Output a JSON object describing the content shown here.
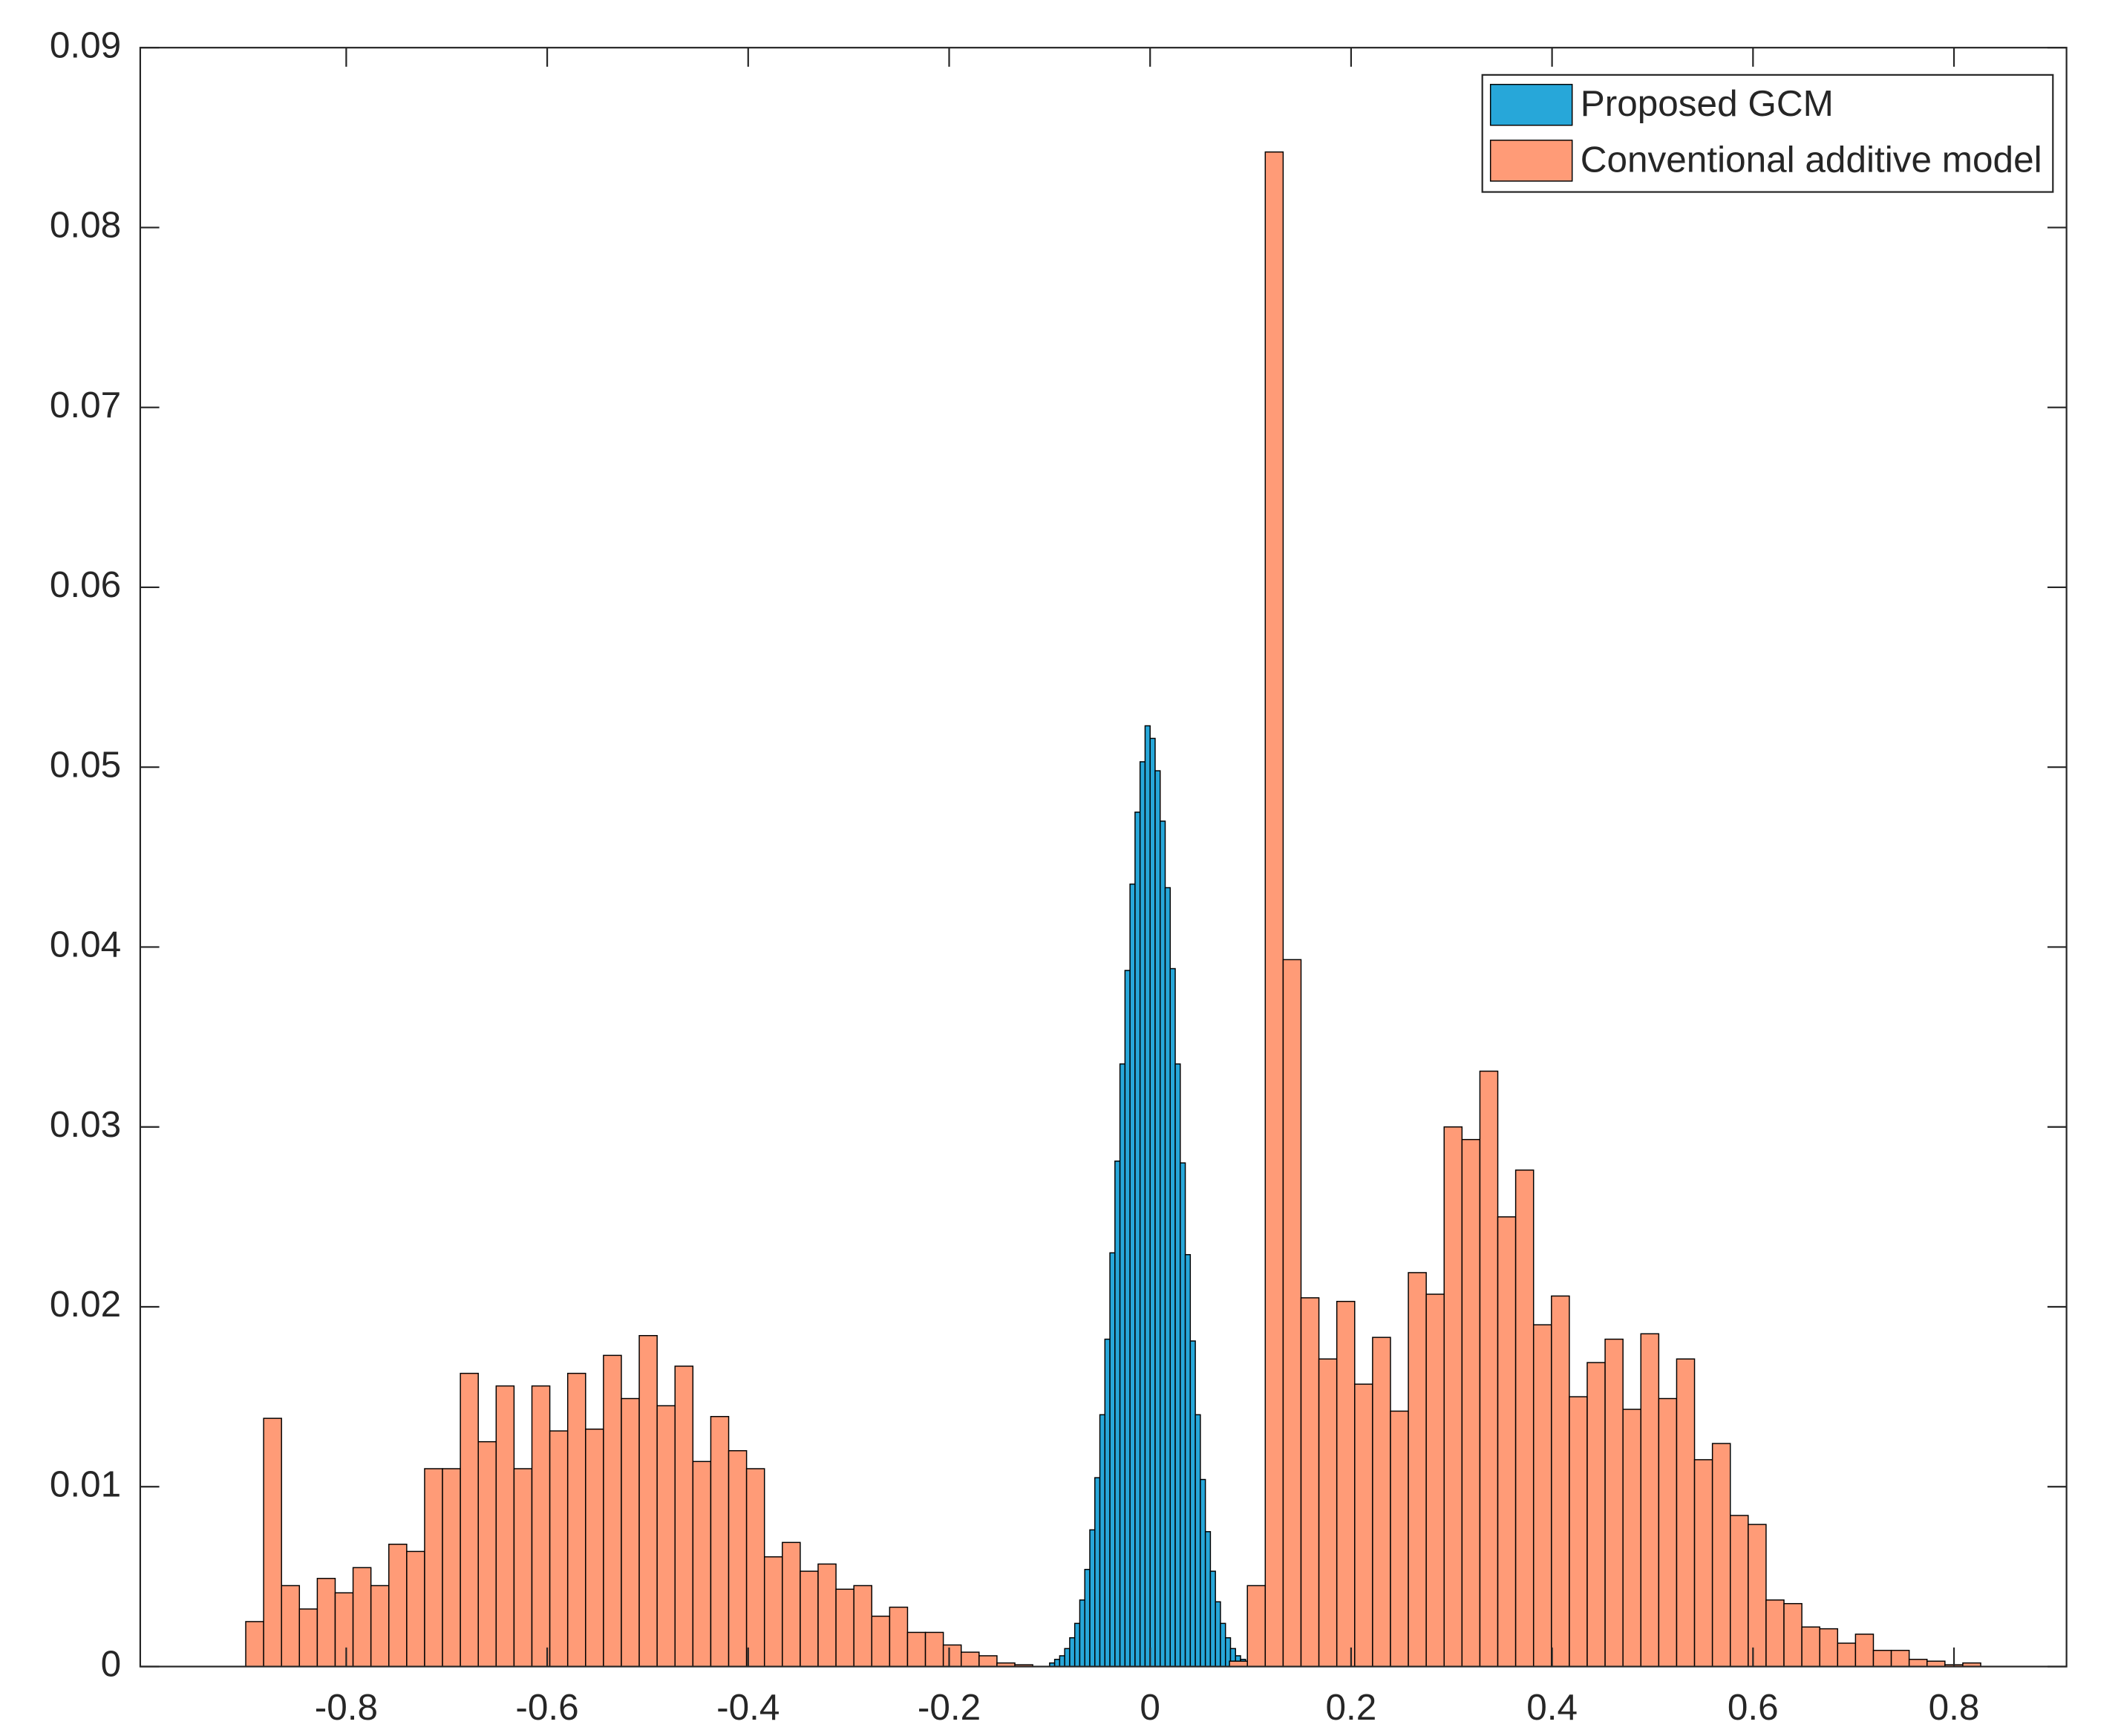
{
  "chart_data": {
    "type": "histogram",
    "xlim": [
      -1.005,
      0.912
    ],
    "ylim": [
      0,
      0.09
    ],
    "xticks": [
      -0.8,
      -0.6,
      -0.4,
      -0.2,
      0,
      0.2,
      0.4,
      0.6,
      0.8
    ],
    "yticks": [
      0,
      0.01,
      0.02,
      0.03,
      0.04,
      0.05,
      0.06,
      0.07,
      0.08,
      0.09
    ],
    "legend": "top-right",
    "series": [
      {
        "name": "Proposed GCM",
        "color": "#27a7d9",
        "bins": [
          -0.1,
          -0.095,
          -0.09,
          -0.085,
          -0.08,
          -0.075,
          -0.07,
          -0.065,
          -0.06,
          -0.055,
          -0.05,
          -0.045,
          -0.04,
          -0.035,
          -0.03,
          -0.025,
          -0.02,
          -0.015,
          -0.01,
          -0.005,
          0,
          0.005,
          0.01,
          0.015,
          0.02,
          0.025,
          0.03,
          0.035,
          0.04,
          0.045,
          0.05,
          0.055,
          0.06,
          0.065,
          0.07,
          0.075,
          0.08,
          0.085,
          0.09,
          0.095,
          0.1
        ],
        "values": [
          0.0002,
          0.0004,
          0.0006,
          0.001,
          0.0016,
          0.0024,
          0.0037,
          0.0054,
          0.0076,
          0.0105,
          0.014,
          0.0182,
          0.023,
          0.0281,
          0.0335,
          0.0387,
          0.0435,
          0.0475,
          0.0503,
          0.0523,
          0.0516,
          0.0498,
          0.047,
          0.0433,
          0.0388,
          0.0335,
          0.028,
          0.0229,
          0.0181,
          0.014,
          0.0104,
          0.0075,
          0.0053,
          0.0036,
          0.0024,
          0.0016,
          0.001,
          0.0006,
          0.0004,
          0.0002
        ]
      },
      {
        "name": "Conventional additive model",
        "color": "#ff9b77",
        "bins": [
          -0.9,
          -0.8822,
          -0.8644,
          -0.8466,
          -0.8288,
          -0.811,
          -0.7932,
          -0.7754,
          -0.7576,
          -0.7398,
          -0.722,
          -0.7042,
          -0.6864,
          -0.6686,
          -0.6508,
          -0.633,
          -0.6152,
          -0.5974,
          -0.5796,
          -0.5618,
          -0.544,
          -0.5262,
          -0.5084,
          -0.4906,
          -0.4728,
          -0.455,
          -0.4372,
          -0.4194,
          -0.4016,
          -0.3838,
          -0.366,
          -0.3482,
          -0.3304,
          -0.3126,
          -0.2948,
          -0.277,
          -0.2592,
          -0.2414,
          -0.2236,
          -0.2058,
          -0.188,
          -0.1702,
          -0.1524,
          -0.1346,
          -0.1168,
          -0.099,
          -0.0812,
          -0.0634,
          -0.0456,
          -0.0278,
          -0.01,
          0.0078,
          0.0256,
          0.0434,
          0.0612,
          0.079,
          0.0968,
          0.1146,
          0.1324,
          0.1502,
          0.168,
          0.1858,
          0.2036,
          0.2214,
          0.2392,
          0.257,
          0.2748,
          0.2926,
          0.3104,
          0.3282,
          0.346,
          0.3638,
          0.3816,
          0.3994,
          0.4172,
          0.435,
          0.4528,
          0.4706,
          0.4884,
          0.5062,
          0.524,
          0.5418,
          0.5596,
          0.5774,
          0.5952,
          0.613,
          0.6308,
          0.6486,
          0.6664,
          0.6842,
          0.702,
          0.7198,
          0.7376,
          0.7554,
          0.7732,
          0.791,
          0.8088,
          0.8266
        ],
        "values": [
          0.0025,
          0.0138,
          0.0045,
          0.0032,
          0.0049,
          0.0041,
          0.0055,
          0.0045,
          0.0068,
          0.0064,
          0.011,
          0.011,
          0.0163,
          0.0125,
          0.0156,
          0.011,
          0.0156,
          0.0131,
          0.0163,
          0.0132,
          0.0173,
          0.0149,
          0.0184,
          0.0145,
          0.0167,
          0.0114,
          0.0139,
          0.012,
          0.011,
          0.0061,
          0.0069,
          0.0053,
          0.0057,
          0.0043,
          0.0045,
          0.0028,
          0.0033,
          0.0019,
          0.0019,
          0.0012,
          0.0008,
          0.0006,
          0.0002,
          0.0001,
          0,
          0,
          0,
          0,
          0,
          0,
          0,
          0,
          0,
          0,
          0,
          0.0003,
          0.0045,
          0.0842,
          0.0393,
          0.0205,
          0.0171,
          0.0203,
          0.0157,
          0.0183,
          0.0142,
          0.0219,
          0.0207,
          0.03,
          0.0293,
          0.0331,
          0.025,
          0.0276,
          0.019,
          0.0206,
          0.015,
          0.0169,
          0.0182,
          0.0143,
          0.0185,
          0.0149,
          0.0171,
          0.0115,
          0.0124,
          0.0084,
          0.0079,
          0.0037,
          0.0035,
          0.0022,
          0.0021,
          0.0013,
          0.0018,
          0.0009,
          0.0009,
          0.0004,
          0.0003,
          0.0001,
          0.0002
        ]
      }
    ]
  }
}
